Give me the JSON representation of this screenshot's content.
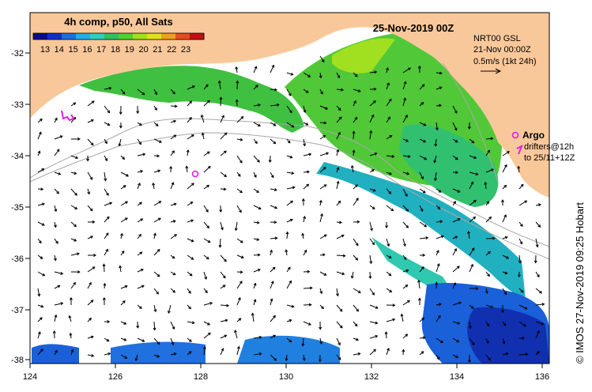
{
  "header": {
    "legend_title": "4h comp, p50, All Sats",
    "date_title": "25-Nov-2019 00Z"
  },
  "colorbar": {
    "labels": [
      "13",
      "14",
      "15",
      "16",
      "17",
      "18",
      "19",
      "20",
      "21",
      "22",
      "23"
    ],
    "colors": [
      "#0a0a8a",
      "#1030c8",
      "#1a70e0",
      "#20b0e8",
      "#30d0c0",
      "#30c060",
      "#50d030",
      "#a0e020",
      "#e0e020",
      "#f0a020",
      "#e05020",
      "#c01010"
    ]
  },
  "current_info": {
    "line1": "NRT00 GSL",
    "line2": "21-Nov 00:00Z",
    "line3": "0.5m/s (1kt 24h)"
  },
  "argo": {
    "title": "Argo",
    "line1": "drifters@12h",
    "line2": "to 25/11+12Z"
  },
  "credit": "© IMOS 27-Nov-2019 09:25 Hobart",
  "axes": {
    "x_ticks": [
      "124",
      "126",
      "128",
      "130",
      "132",
      "134",
      "136"
    ],
    "y_ticks": [
      "-32",
      "-33",
      "-34",
      "-35",
      "-36",
      "-37",
      "-38"
    ]
  },
  "colors": {
    "land": "#f9c89a",
    "sea": "#ffffff",
    "argo": "#e020e0",
    "contour": "#a8a8a8"
  }
}
